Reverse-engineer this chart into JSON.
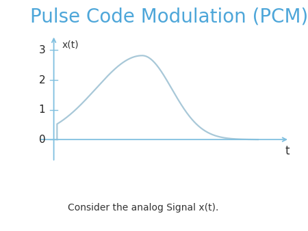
{
  "title": "Pulse Code Modulation (PCM)",
  "title_color": "#4da6d9",
  "title_fontsize": 20,
  "xlabel": "t",
  "ylabel": "x(t)",
  "axis_color": "#7fbfdf",
  "curve_color": "#a8c8d8",
  "yticks": [
    0,
    1,
    2,
    3
  ],
  "xlim": [
    -0.08,
    1.12
  ],
  "ylim": [
    -0.9,
    3.6
  ],
  "annotation": "Consider the analog Signal x(t).",
  "annotation_fontsize": 10,
  "annotation_color": "#333333",
  "curve_peak_x": 0.42,
  "curve_peak_y": 2.82,
  "rise_sigma": 0.22,
  "fall_sigma": 0.14
}
